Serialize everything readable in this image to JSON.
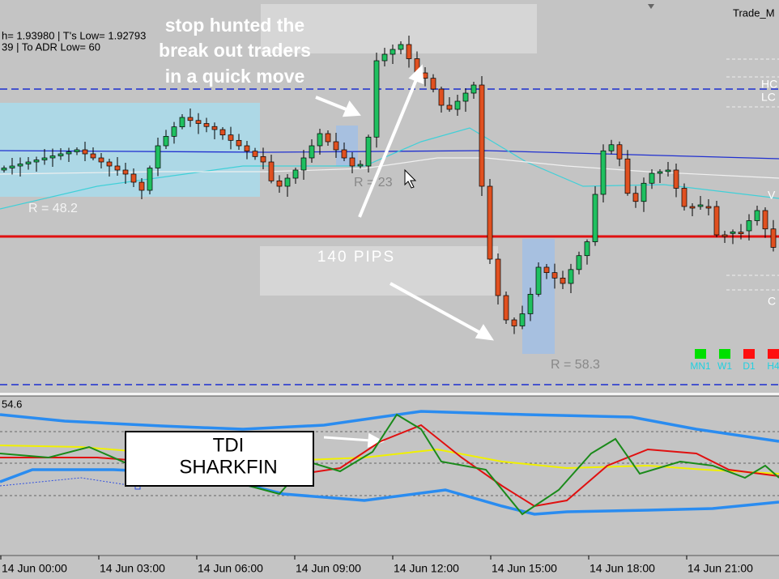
{
  "info": {
    "line1": "h= 1.93980   | T's Low= 1.92793",
    "line2": "39   | To ADR Low= 60"
  },
  "window_title": "Trade_M",
  "annotations": {
    "stop_hunt": [
      "stop hunted the",
      "break out traders",
      "in a quick move"
    ],
    "pips": "140 PIPS",
    "tdi": [
      "TDI",
      "SHARKFIN"
    ]
  },
  "range_labels": [
    "R = 48.2",
    "R = 23",
    "R = 58.3"
  ],
  "side_labels": [
    "HC",
    "LC",
    "V",
    "C"
  ],
  "timeframes": [
    {
      "label": "MN1",
      "color": "#00e000"
    },
    {
      "label": "W1",
      "color": "#00e000"
    },
    {
      "label": "D1",
      "color": "#ff1010"
    },
    {
      "label": "H4",
      "color": "#ff1010"
    }
  ],
  "indicator_level": "54.6",
  "time_axis": [
    "14 Jun 00:00",
    "14 Jun 03:00",
    "14 Jun 06:00",
    "14 Jun 09:00",
    "14 Jun 12:00",
    "14 Jun 15:00",
    "14 Jun 18:00",
    "14 Jun 21:00"
  ]
}
